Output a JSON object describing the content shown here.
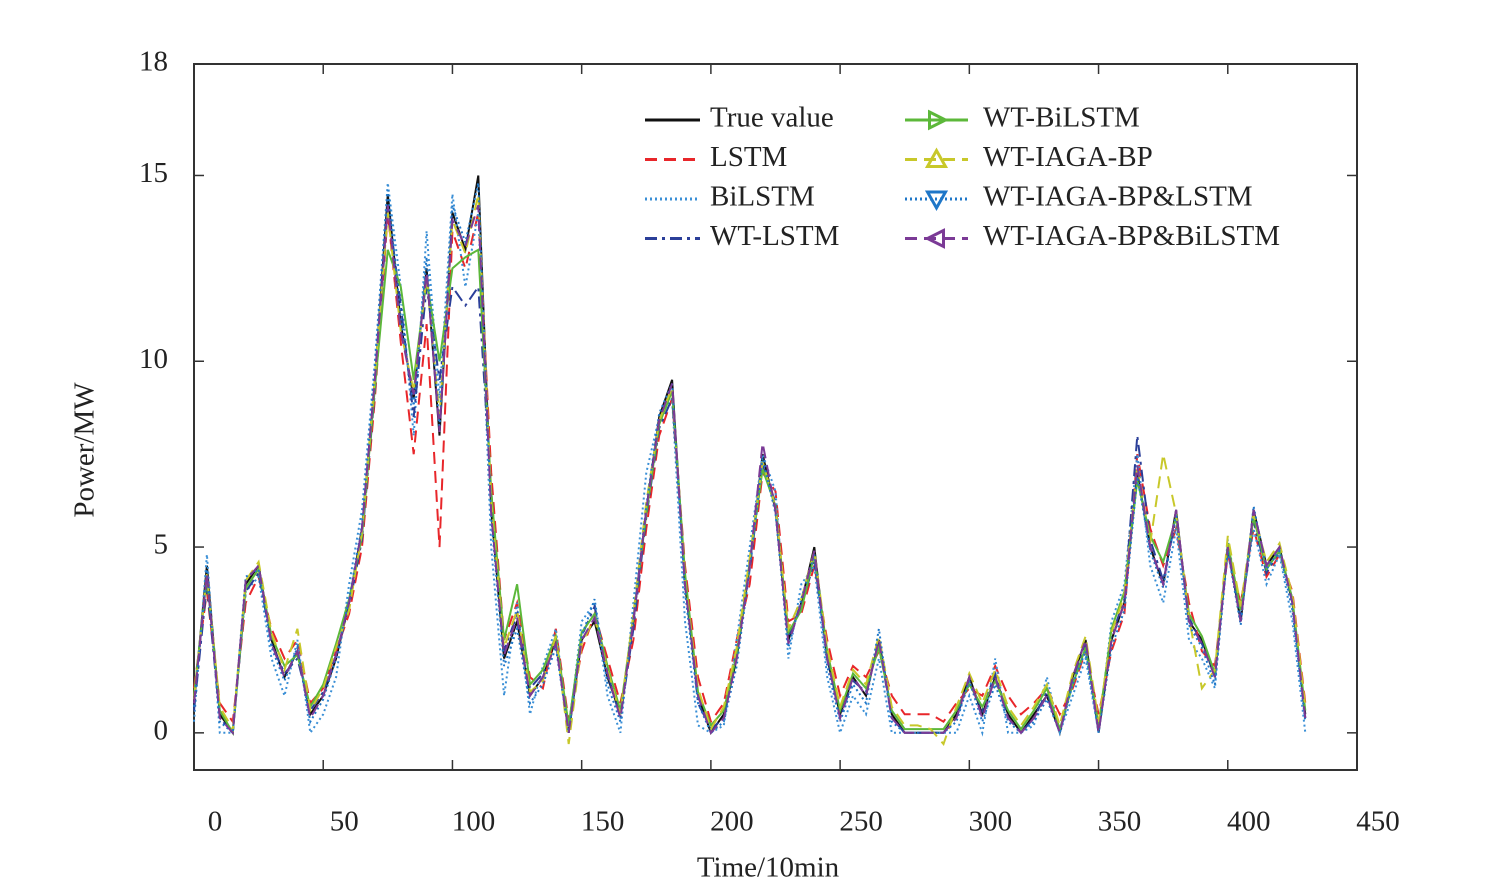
{
  "chart_data": {
    "type": "line",
    "x_label": "Time/10min",
    "y_label": "Power/MW",
    "xlim": [
      0,
      450
    ],
    "xticks": [
      0,
      50,
      100,
      150,
      200,
      250,
      300,
      350,
      400,
      450
    ],
    "ylim": [
      -1,
      18
    ],
    "yticks": [
      0,
      5,
      10,
      15,
      18
    ],
    "legend": "top-right",
    "x": [
      0,
      5,
      10,
      15,
      20,
      25,
      30,
      35,
      40,
      45,
      50,
      55,
      60,
      65,
      70,
      75,
      80,
      85,
      90,
      95,
      100,
      105,
      110,
      115,
      120,
      125,
      130,
      135,
      140,
      145,
      150,
      155,
      160,
      165,
      170,
      175,
      180,
      185,
      190,
      195,
      200,
      205,
      210,
      215,
      220,
      225,
      230,
      235,
      240,
      245,
      250,
      255,
      260,
      265,
      270,
      275,
      280,
      285,
      290,
      295,
      300,
      305,
      310,
      315,
      320,
      325,
      330,
      335,
      340,
      345,
      350,
      355,
      360,
      365,
      370,
      375,
      380,
      385,
      390,
      395,
      400,
      405,
      410,
      415,
      420,
      425,
      430
    ],
    "series": [
      {
        "name": "True value",
        "color": "#111111",
        "linestyle": "solid",
        "marker": "none",
        "values": [
          0.8,
          4.5,
          0.5,
          0,
          4,
          4.5,
          2.5,
          1.5,
          2.2,
          0.5,
          1,
          2,
          3.5,
          5.5,
          9.5,
          14.5,
          11,
          9,
          12.5,
          8,
          14,
          13,
          15,
          6,
          2,
          3,
          1,
          1.5,
          2.5,
          0,
          2.5,
          3,
          1.5,
          0.5,
          3,
          6,
          8.5,
          9.5,
          4,
          1,
          0,
          0.5,
          2,
          4.5,
          7.5,
          6,
          2.5,
          3.5,
          5,
          2,
          0.5,
          1.5,
          1,
          2.5,
          0.5,
          0,
          0,
          0,
          0,
          0.5,
          1.5,
          0.5,
          1.5,
          0.5,
          0,
          0.5,
          1,
          0,
          1.5,
          2.5,
          0,
          2.5,
          3.5,
          7,
          5,
          4,
          6,
          3,
          2.5,
          1.5,
          5,
          3,
          6,
          4.5,
          5,
          3.5,
          0.5
        ]
      },
      {
        "name": "LSTM",
        "color": "#e8262a",
        "linestyle": "dashed",
        "marker": "none",
        "values": [
          1.2,
          3.8,
          0.8,
          0.3,
          3.5,
          4.2,
          2.8,
          2,
          2.5,
          0.8,
          1.2,
          2.2,
          3.2,
          5,
          9,
          14,
          10.5,
          7.5,
          11,
          5,
          13.5,
          12.5,
          14,
          7,
          2.5,
          3.5,
          1.5,
          1.2,
          2.8,
          0.3,
          2.2,
          3.2,
          2,
          0.8,
          2.5,
          5.5,
          8,
          9,
          4.5,
          1.5,
          0.3,
          0.8,
          2.5,
          4,
          7,
          6.5,
          3,
          3.2,
          4.5,
          2.5,
          1,
          1.8,
          1.5,
          2.2,
          1,
          0.5,
          0.5,
          0.5,
          0.3,
          0.8,
          1.2,
          1,
          1.8,
          1,
          0.5,
          0.8,
          1.2,
          0.5,
          1.2,
          2.2,
          0.5,
          2.2,
          3.2,
          7.5,
          5.5,
          4.5,
          5.5,
          3.5,
          2.2,
          1.8,
          4.8,
          3.5,
          5.5,
          4.2,
          4.8,
          3.8,
          0.8
        ]
      },
      {
        "name": "BiLSTM",
        "color": "#3a8fd6",
        "linestyle": "dotted",
        "marker": "none",
        "values": [
          0.3,
          4.8,
          0,
          0,
          3.8,
          4.2,
          2,
          1,
          2.5,
          0,
          0.5,
          1.5,
          4,
          6,
          10,
          14.8,
          12,
          8,
          13.5,
          9,
          14.5,
          12,
          14,
          5,
          1,
          3.5,
          0.5,
          1.8,
          2.8,
          0,
          3,
          3.5,
          1,
          0,
          3.5,
          7,
          8.5,
          9,
          3,
          0.2,
          0,
          0.2,
          2.5,
          5,
          7.5,
          6.5,
          2,
          4,
          4.5,
          1.5,
          0,
          1,
          0.5,
          2,
          0,
          0,
          0,
          0,
          0,
          0,
          1,
          0,
          2,
          0,
          0,
          0.2,
          1.5,
          0,
          1,
          2,
          0,
          3,
          4,
          7.5,
          4.5,
          3.5,
          5.5,
          2.5,
          2,
          1.2,
          5.2,
          3.2,
          5.5,
          4,
          4.8,
          3,
          0
        ]
      },
      {
        "name": "WT-LSTM",
        "color": "#2b3f99",
        "linestyle": "dashdot",
        "marker": "none",
        "values": [
          0.6,
          4,
          0.4,
          0,
          3.8,
          4.3,
          2.4,
          1.6,
          2,
          0.6,
          1.1,
          2.1,
          3.4,
          5.2,
          9.2,
          14.2,
          11.5,
          8.5,
          12,
          9.5,
          12,
          11.5,
          12,
          6.5,
          2.2,
          3.2,
          1.2,
          1.6,
          2.4,
          0.2,
          2.6,
          3.4,
          1.6,
          0.4,
          2.8,
          5.8,
          8.2,
          9,
          4.2,
          0.8,
          0.1,
          0.4,
          2.2,
          4.4,
          7.2,
          6.2,
          2.6,
          3.4,
          4.6,
          2.1,
          0.4,
          1.4,
          1.1,
          2.4,
          0.4,
          0,
          0,
          0,
          0,
          0.4,
          1.4,
          0.6,
          1.6,
          0.4,
          0,
          0.4,
          1.1,
          0,
          1.4,
          2.4,
          0.1,
          2.6,
          3.6,
          8,
          5.2,
          4.1,
          5.8,
          3.1,
          2.4,
          1.6,
          4.9,
          3.1,
          5.7,
          4.3,
          4.9,
          3.6,
          0.4
        ]
      },
      {
        "name": "WT-BiLSTM",
        "color": "#5cb83a",
        "linestyle": "solid",
        "marker": "triangle-right",
        "values": [
          1,
          4.2,
          0.6,
          0,
          3.9,
          4.4,
          2.6,
          1.8,
          2.1,
          0.7,
          1.3,
          2.4,
          3.6,
          5.3,
          9.3,
          13,
          12,
          9.5,
          12.2,
          10,
          12.5,
          12.8,
          13,
          6.5,
          2.5,
          4,
          1.3,
          1.7,
          2.6,
          0.2,
          2.7,
          3.2,
          1.8,
          0.6,
          3.1,
          5.9,
          8.3,
          9.2,
          4.3,
          1.1,
          0.2,
          0.6,
          2.1,
          4.6,
          7.1,
          6.1,
          2.7,
          3.3,
          4.8,
          2.2,
          0.6,
          1.6,
          1.2,
          2.3,
          0.6,
          0.1,
          0.1,
          0.1,
          0.1,
          0.6,
          1.3,
          0.7,
          1.4,
          0.6,
          0.1,
          0.6,
          1.2,
          0.1,
          1.3,
          2.3,
          0.2,
          2.8,
          3.8,
          6.8,
          5.3,
          4.6,
          5.8,
          3.2,
          2.6,
          1.6,
          5.1,
          3.3,
          5.8,
          4.4,
          4.9,
          3.6,
          0.6
        ]
      },
      {
        "name": "WT-IAGA-BP",
        "color": "#c8c82a",
        "linestyle": "dashed",
        "marker": "triangle-up",
        "values": [
          0.9,
          4.3,
          0.7,
          0.1,
          4.1,
          4.6,
          2.7,
          1.7,
          2.8,
          0.6,
          1.2,
          2.3,
          3.3,
          5.4,
          9.6,
          14,
          10.8,
          9.2,
          12.3,
          8.5,
          13.8,
          12.9,
          14.5,
          6.2,
          2.3,
          3.3,
          1.1,
          1.4,
          2.6,
          -0.3,
          2.4,
          3.1,
          1.7,
          0.5,
          3.2,
          6.2,
          8.4,
          9.3,
          4.1,
          1.2,
          0.1,
          0.7,
          2.3,
          4.7,
          7.3,
          6.1,
          2.8,
          3.6,
          4.9,
          2.3,
          0.7,
          1.7,
          1.3,
          2.6,
          0.7,
          0.2,
          0.2,
          0.1,
          -0.3,
          0.7,
          1.6,
          0.8,
          1.7,
          0.7,
          0.2,
          0.7,
          1.3,
          0.2,
          1.6,
          2.6,
          0.3,
          2.7,
          3.7,
          7.2,
          5.1,
          7.5,
          5.9,
          3.1,
          1.2,
          1.7,
          5.3,
          3.4,
          5.9,
          4.6,
          5.1,
          3.7,
          0.7
        ]
      },
      {
        "name": "WT-IAGA-BP&LSTM",
        "color": "#1f77c8",
        "linestyle": "dotted",
        "marker": "triangle-down",
        "values": [
          0.7,
          4.4,
          0.3,
          0,
          4.2,
          4.4,
          2.3,
          1.4,
          2.3,
          0.3,
          0.9,
          2,
          3.6,
          5.6,
          9.8,
          14.6,
          11.2,
          8.8,
          12.8,
          8.2,
          14.2,
          13.2,
          14.8,
          5.8,
          1.8,
          2.8,
          0.8,
          1.3,
          2.3,
          0,
          2.6,
          3.6,
          1.3,
          0.3,
          3.1,
          6.1,
          8.6,
          9.4,
          3.8,
          0.8,
          0,
          0.3,
          1.8,
          4.4,
          7.4,
          5.9,
          2.3,
          3.6,
          4.8,
          1.8,
          0.3,
          1.3,
          0.8,
          2.8,
          0.3,
          0,
          0,
          0,
          0,
          0.3,
          1.4,
          0.3,
          1.3,
          0.3,
          0,
          0.3,
          0.9,
          0,
          1.3,
          2.2,
          0,
          2.3,
          3.3,
          6.9,
          4.9,
          3.9,
          5.9,
          2.9,
          2.3,
          1.3,
          4.9,
          2.9,
          6.1,
          4.4,
          4.9,
          3.3,
          0.3
        ]
      },
      {
        "name": "WT-IAGA-BP&BiLSTM",
        "color": "#7b3a96",
        "linestyle": "dashed",
        "marker": "triangle-left",
        "values": [
          0.8,
          4.3,
          0.4,
          0,
          4.1,
          4.5,
          2.4,
          1.5,
          2.2,
          0.4,
          1,
          2.1,
          3.5,
          5.5,
          9.5,
          14.2,
          10.8,
          9.1,
          12.4,
          8.1,
          13.8,
          13.1,
          14.2,
          5.9,
          2.1,
          3.1,
          1,
          1.5,
          2.4,
          0,
          2.5,
          3.1,
          1.6,
          0.4,
          3,
          6,
          8.4,
          9.4,
          4,
          1,
          0,
          0.4,
          2,
          4.5,
          7.8,
          6,
          2.4,
          3.5,
          4.9,
          2,
          0.4,
          1.5,
          1,
          2.5,
          0.4,
          0,
          0,
          0,
          0,
          0.4,
          1.5,
          0.4,
          1.5,
          0.4,
          0,
          0.4,
          1,
          0,
          1.5,
          2.5,
          0,
          2.5,
          3.5,
          7.2,
          5,
          4,
          6,
          3,
          2.4,
          1.5,
          5,
          3,
          6,
          4.5,
          5,
          3.5,
          0.4
        ]
      }
    ]
  }
}
